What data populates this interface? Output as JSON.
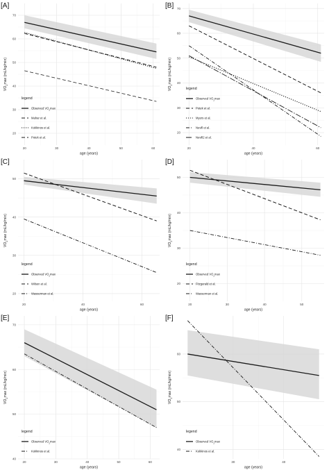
{
  "panels": [
    {
      "label": "[A]",
      "chart_data": {
        "type": "line",
        "x_range": [
          18,
          62
        ],
        "ylim": [
          15,
          75
        ],
        "xticks": [
          20,
          30,
          40,
          50,
          60
        ],
        "yticks": [
          20,
          30,
          40,
          50,
          60,
          70
        ],
        "xlabel": "age (years)",
        "ylabel": "VO2max (mL/kg/min)",
        "legend_title": "legend",
        "legend_position": "bottom-left",
        "series": [
          {
            "name": "Observed VO2max",
            "dash": "solid",
            "width": 1.3,
            "x": [
              20,
              61
            ],
            "y": [
              67,
              54.5
            ],
            "ribbon_upper": [
              70,
              58
            ],
            "ribbon_lower": [
              64.5,
              51.5
            ]
          },
          {
            "name": "Mahar et al.",
            "dash": "dash",
            "width": 1.0,
            "x": [
              20,
              61
            ],
            "y": [
              62.3,
              48
            ]
          },
          {
            "name": "Kokkinos et al.",
            "dash": "dot",
            "width": 1.1,
            "x": [
              20,
              61
            ],
            "y": [
              62.7,
              47.5
            ]
          },
          {
            "name": "Potek et al.",
            "dash": "dash",
            "width": 0.8,
            "x": [
              20,
              61
            ],
            "y": [
              46.5,
              33.5
            ]
          }
        ]
      }
    },
    {
      "label": "[B]",
      "chart_data": {
        "type": "line",
        "x_range": [
          18,
          62
        ],
        "ylim": [
          15,
          72
        ],
        "xticks": [
          20,
          40,
          60
        ],
        "yticks": [
          20,
          30,
          40,
          50,
          60,
          70
        ],
        "xlabel": "age (years)",
        "ylabel": "VO2max (mL/kg/min)",
        "legend_title": "legend",
        "legend_position": "bottom-left",
        "series": [
          {
            "name": "Observed VO2max",
            "dash": "solid",
            "width": 1.3,
            "x": [
              20,
              61
            ],
            "y": [
              67,
              52
            ],
            "ribbon_upper": [
              69.5,
              55.5
            ],
            "ribbon_lower": [
              64.5,
              48.5
            ]
          },
          {
            "name": "Potek et al.",
            "dash": "dash",
            "width": 1.0,
            "x": [
              20,
              61
            ],
            "y": [
              63,
              36
            ]
          },
          {
            "name": "Myers et al.",
            "dash": "dot",
            "width": 1.1,
            "x": [
              20,
              61
            ],
            "y": [
              50.5,
              28.5
            ]
          },
          {
            "name": "Nevill et al.",
            "dash": "dashdot",
            "width": 0.9,
            "x": [
              20,
              61
            ],
            "y": [
              55,
              18.5
            ]
          },
          {
            "name": "Nevill2 et al.",
            "dash": "longdashdot",
            "width": 0.9,
            "x": [
              20,
              61
            ],
            "y": [
              51,
              22
            ]
          }
        ]
      }
    },
    {
      "label": "[C]",
      "chart_data": {
        "type": "line",
        "x_range": [
          18,
          66
        ],
        "ylim": [
          18,
          55
        ],
        "xticks": [
          20,
          40,
          60
        ],
        "yticks": [
          20,
          30,
          40,
          50
        ],
        "xlabel": "age (years)",
        "ylabel": "VO2max (mL/kg/min)",
        "legend_title": "legend",
        "legend_position": "bottom-left",
        "series": [
          {
            "name": "Observed VO2max",
            "dash": "solid",
            "width": 1.3,
            "x": [
              20,
              65
            ],
            "y": [
              49.5,
              45.5
            ],
            "ribbon_upper": [
              50.5,
              47.5
            ],
            "ribbon_lower": [
              48.5,
              43.5
            ]
          },
          {
            "name": "Wilson et al.",
            "dash": "dash",
            "width": 1.0,
            "x": [
              20,
              65
            ],
            "y": [
              51.5,
              39
            ]
          },
          {
            "name": "Wasserman et al.",
            "dash": "dashdot",
            "width": 0.9,
            "x": [
              20,
              65
            ],
            "y": [
              39.5,
              25.5
            ]
          }
        ]
      }
    },
    {
      "label": "[D]",
      "chart_data": {
        "type": "line",
        "x_range": [
          18,
          56
        ],
        "ylim": [
          15,
          55
        ],
        "xticks": [
          20,
          30,
          40,
          50
        ],
        "yticks": [
          20,
          30,
          40,
          50
        ],
        "xlabel": "age (years)",
        "ylabel": "VO2max (mL/kg/min)",
        "legend_title": "legend",
        "legend_position": "bottom-left",
        "series": [
          {
            "name": "Observed VO2max",
            "dash": "solid",
            "width": 1.3,
            "x": [
              20,
              55
            ],
            "y": [
              50,
              46.5
            ],
            "ribbon_upper": [
              51.5,
              48.5
            ],
            "ribbon_lower": [
              48.5,
              44.5
            ]
          },
          {
            "name": "Fitzgerald et al.",
            "dash": "dash",
            "width": 1.0,
            "x": [
              20,
              55
            ],
            "y": [
              52,
              38
            ]
          },
          {
            "name": "Wasserman et al.",
            "dash": "dashdot",
            "width": 0.9,
            "x": [
              20,
              55
            ],
            "y": [
              35,
              28
            ]
          }
        ]
      }
    },
    {
      "label": "[E]",
      "chart_data": {
        "type": "line",
        "x_range": [
          18,
          63
        ],
        "ylim": [
          40,
          72
        ],
        "xticks": [
          20,
          30,
          40,
          50,
          60
        ],
        "yticks": [
          40,
          50,
          60,
          70
        ],
        "xlabel": "age (years)",
        "ylabel": "VO2max (mL/kg/min)",
        "legend_title": "legend",
        "legend_position": "bottom-left",
        "series": [
          {
            "name": "Observed VO2max",
            "dash": "solid",
            "width": 1.3,
            "x": [
              20,
              62
            ],
            "y": [
              66,
              51
            ],
            "ribbon_upper": [
              69,
              55.5
            ],
            "ribbon_lower": [
              63,
              47
            ]
          },
          {
            "name": "Kokkinos et al.",
            "dash": "dashdot",
            "width": 0.9,
            "x": [
              20,
              62
            ],
            "y": [
              63.5,
              47
            ]
          }
        ]
      }
    },
    {
      "label": "[F]",
      "chart_data": {
        "type": "line",
        "x_range": [
          20,
          48
        ],
        "ylim": [
          38,
          68
        ],
        "xticks": [
          30,
          40
        ],
        "yticks": [
          40,
          50,
          60
        ],
        "xlabel": "age (years)",
        "ylabel": "VO2max (mL/kg/min)",
        "legend_title": "legend",
        "legend_position": "bottom-left",
        "series": [
          {
            "name": "Observed VO2max",
            "dash": "solid",
            "width": 1.3,
            "x": [
              21,
              47
            ],
            "y": [
              60,
              55.5
            ],
            "ribbon_upper": [
              65,
              61
            ],
            "ribbon_lower": [
              55.5,
              50.5
            ]
          },
          {
            "name": "Kokkinos et al.",
            "dash": "dashdot",
            "width": 0.9,
            "x": [
              21,
              47
            ],
            "y": [
              67,
              38.5
            ]
          }
        ]
      }
    }
  ]
}
